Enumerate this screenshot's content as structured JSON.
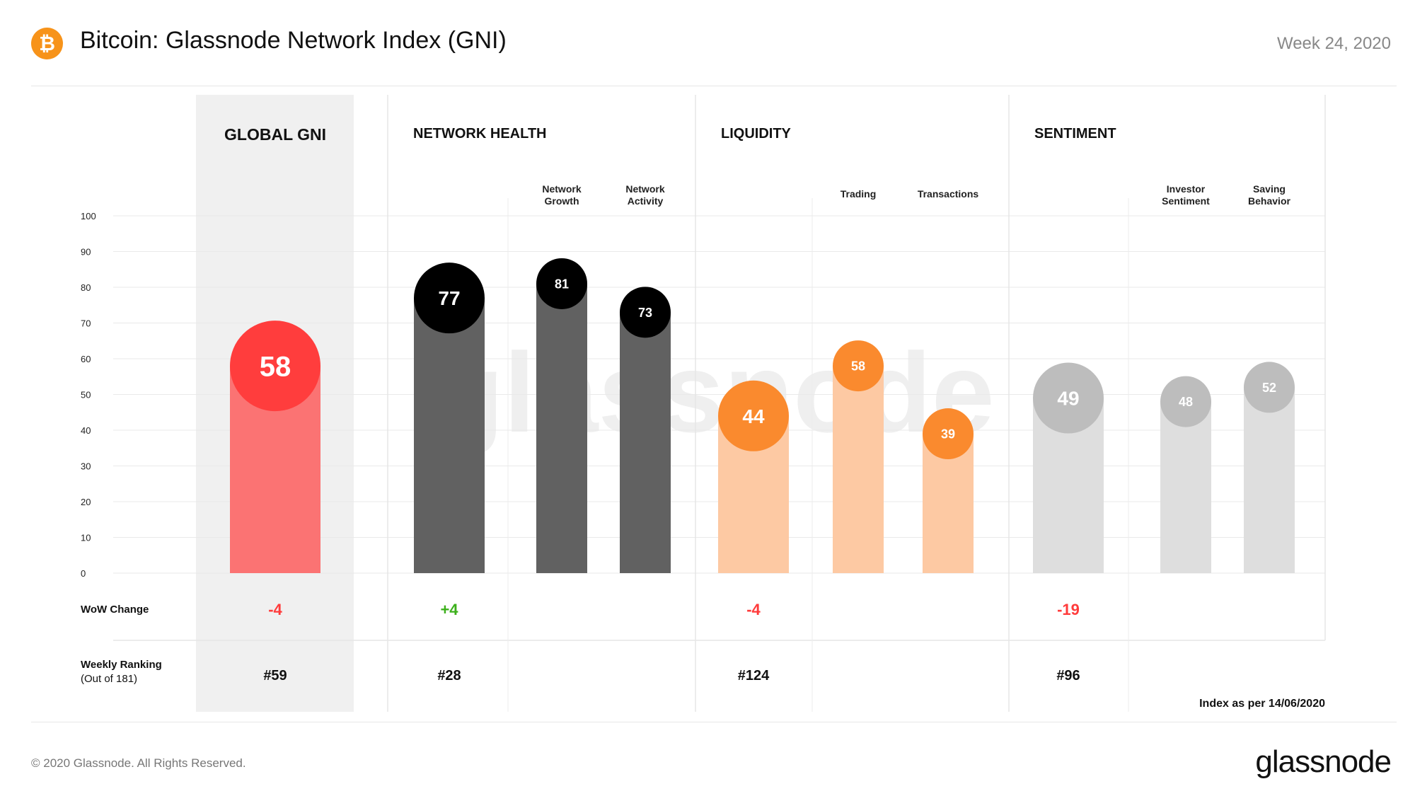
{
  "header": {
    "title": "Bitcoin: Glassnode Network Index (GNI)",
    "week": "Week 24, 2020",
    "logo_icon": "bitcoin-icon",
    "logo_glyph": "₿"
  },
  "footer": {
    "copyright": "© 2020 Glassnode. All Rights Reserved.",
    "brand": "glassnode"
  },
  "chart_data": {
    "type": "bar",
    "watermark": "glassnode",
    "ylim": [
      0,
      100
    ],
    "y_ticks": [
      0,
      10,
      20,
      30,
      40,
      50,
      60,
      70,
      80,
      90,
      100
    ],
    "grid": true,
    "row_labels": {
      "wow": "WoW  Change",
      "ranking_line1": "Weekly Ranking",
      "ranking_line2": "(Out of 181)"
    },
    "note": "Index as per 14/06/2020",
    "groups": [
      {
        "name": "GLOBAL GNI",
        "wow": "-4",
        "wow_color": "#ff3b3b",
        "rank": "#59",
        "main": {
          "value": 58,
          "bar_color": "#fb7373",
          "dot_color": "#ff3d3d",
          "text_color": "#ffffff"
        },
        "subs": []
      },
      {
        "name": "NETWORK HEALTH",
        "wow": "+4",
        "wow_color": "#3cb01b",
        "rank": "#28",
        "main": {
          "value": 77,
          "bar_color": "#616161",
          "dot_color": "#000000",
          "text_color": "#ffffff"
        },
        "subs": [
          {
            "label_line1": "Network",
            "label_line2": "Growth",
            "value": 81,
            "bar_color": "#616161",
            "dot_color": "#000000",
            "text_color": "#ffffff"
          },
          {
            "label_line1": "Network",
            "label_line2": "Activity",
            "value": 73,
            "bar_color": "#616161",
            "dot_color": "#000000",
            "text_color": "#ffffff"
          }
        ]
      },
      {
        "name": "LIQUIDITY",
        "wow": "-4",
        "wow_color": "#ff3b3b",
        "rank": "#124",
        "main": {
          "value": 44,
          "bar_color": "#fdc9a3",
          "dot_color": "#fa8a2e",
          "text_color": "#ffffff"
        },
        "subs": [
          {
            "label_line1": "Trading",
            "label_line2": "",
            "value": 58,
            "bar_color": "#fdc9a3",
            "dot_color": "#fa8a2e",
            "text_color": "#ffffff"
          },
          {
            "label_line1": "Transactions",
            "label_line2": "",
            "value": 39,
            "bar_color": "#fdc9a3",
            "dot_color": "#fa8a2e",
            "text_color": "#ffffff"
          }
        ]
      },
      {
        "name": "SENTIMENT",
        "wow": "-19",
        "wow_color": "#ff3b3b",
        "rank": "#96",
        "main": {
          "value": 49,
          "bar_color": "#dedede",
          "dot_color": "#bdbdbd",
          "text_color": "#ffffff"
        },
        "subs": [
          {
            "label_line1": "Investor",
            "label_line2": "Sentiment",
            "value": 48,
            "bar_color": "#dedede",
            "dot_color": "#bdbdbd",
            "text_color": "#ffffff"
          },
          {
            "label_line1": "Saving",
            "label_line2": "Behavior",
            "value": 52,
            "bar_color": "#dedede",
            "dot_color": "#bdbdbd",
            "text_color": "#ffffff"
          }
        ]
      }
    ]
  }
}
